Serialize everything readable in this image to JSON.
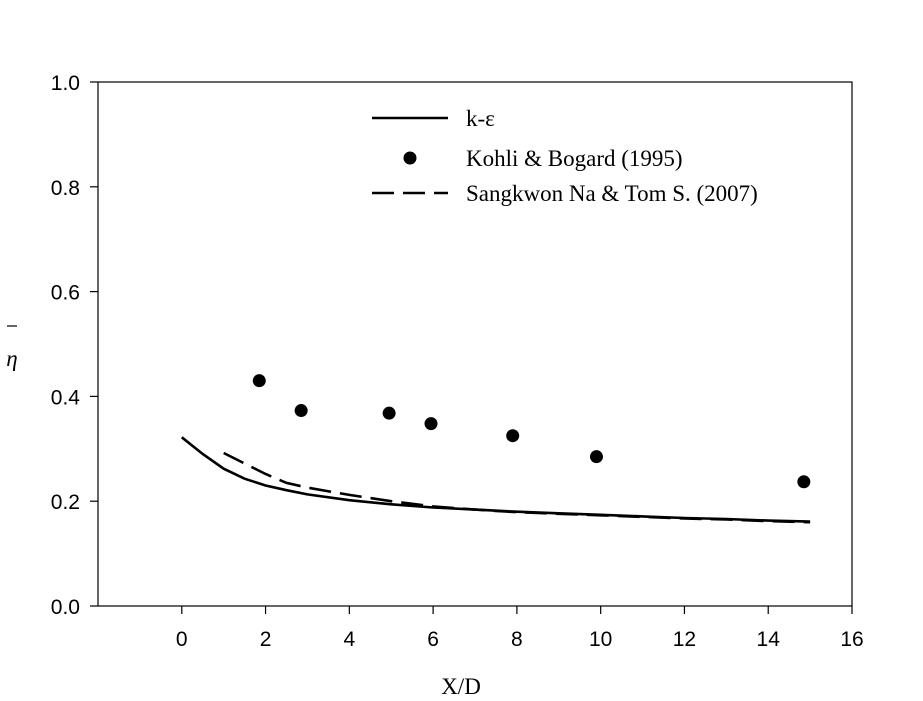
{
  "chart_data": {
    "type": "line",
    "xlabel": "X/D",
    "ylabel": "η",
    "xlim": [
      -2,
      16
    ],
    "ylim": [
      0.0,
      1.0
    ],
    "x_ticks": [
      "0",
      "2",
      "4",
      "6",
      "8",
      "10",
      "12",
      "14",
      "16"
    ],
    "y_ticks": [
      "0.0",
      "0.2",
      "0.4",
      "0.6",
      "0.8",
      "1.0"
    ],
    "grid": false,
    "legend_position": "top-center",
    "series": [
      {
        "name": "k-ε",
        "style": "solid-line",
        "points": [
          [
            0.0,
            0.322
          ],
          [
            0.5,
            0.29
          ],
          [
            1.0,
            0.262
          ],
          [
            1.5,
            0.243
          ],
          [
            2.0,
            0.23
          ],
          [
            2.5,
            0.221
          ],
          [
            3.0,
            0.213
          ],
          [
            4.0,
            0.202
          ],
          [
            5.0,
            0.194
          ],
          [
            6.0,
            0.188
          ],
          [
            7.0,
            0.184
          ],
          [
            8.0,
            0.18
          ],
          [
            9.0,
            0.177
          ],
          [
            10.0,
            0.174
          ],
          [
            11.0,
            0.171
          ],
          [
            12.0,
            0.168
          ],
          [
            13.0,
            0.166
          ],
          [
            14.0,
            0.163
          ],
          [
            15.0,
            0.161
          ]
        ]
      },
      {
        "name": "Kohli & Bogard (1995)",
        "style": "filled-circle",
        "points": [
          [
            1.85,
            0.43
          ],
          [
            2.85,
            0.373
          ],
          [
            4.95,
            0.368
          ],
          [
            5.95,
            0.348
          ],
          [
            7.9,
            0.325
          ],
          [
            9.9,
            0.285
          ],
          [
            14.85,
            0.237
          ]
        ]
      },
      {
        "name": "Sangkwon Na & Tom S. (2007)",
        "style": "dashed-line",
        "points": [
          [
            1.0,
            0.292
          ],
          [
            1.5,
            0.272
          ],
          [
            2.0,
            0.252
          ],
          [
            2.5,
            0.235
          ],
          [
            3.0,
            0.226
          ],
          [
            4.0,
            0.212
          ],
          [
            5.0,
            0.2
          ],
          [
            6.0,
            0.19
          ],
          [
            7.0,
            0.184
          ],
          [
            8.0,
            0.179
          ],
          [
            9.0,
            0.176
          ],
          [
            10.0,
            0.173
          ],
          [
            11.0,
            0.17
          ],
          [
            12.0,
            0.167
          ],
          [
            13.0,
            0.165
          ],
          [
            14.0,
            0.162
          ],
          [
            15.0,
            0.16
          ]
        ]
      }
    ]
  }
}
